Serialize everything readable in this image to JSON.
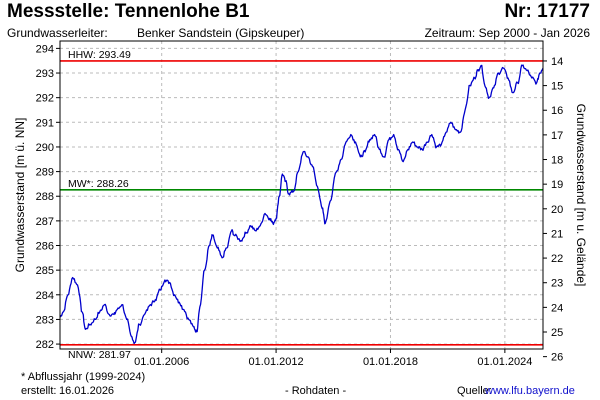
{
  "header": {
    "title": "Messstelle: Tennenlohe B1",
    "number": "Nr: 17177",
    "aquifer_label": "Grundwasserleiter:",
    "aquifer_value": "Benker Sandstein (Gipskeuper)",
    "period": "Zeitraum: Sep 2000 - Jan 2026"
  },
  "footer": {
    "footnote": "* Abflussjahr (1999-2024)",
    "created_label": "erstellt:",
    "created_value": "16.01.2026",
    "data_type": "- Rohdaten -",
    "source_label": "Quelle:",
    "source_value": "www.lfu.bayern.de"
  },
  "colors": {
    "series": "#0000cc",
    "hhw": "#ee0000",
    "mw": "#008800",
    "nnw": "#ee0000",
    "grid": "#bbbbbb"
  },
  "chart_data": {
    "type": "line",
    "title": "Messstelle: Tennenlohe B1",
    "ylabel": "Grundwasserstand [m ü. NN]",
    "y2label": "Grundwasserstand [m u. Gelände]",
    "ylim": [
      281.8,
      294.3
    ],
    "y_ticks": [
      282,
      283,
      284,
      285,
      286,
      287,
      288,
      289,
      290,
      291,
      292,
      293,
      294
    ],
    "y2_ticks": [
      14,
      15,
      16,
      17,
      18,
      19,
      20,
      21,
      22,
      23,
      24,
      25,
      26
    ],
    "y2_reference": 307.49,
    "xlim": [
      "2000-09",
      "2026-01"
    ],
    "x_ticks": [
      "01.01.2006",
      "01.01.2012",
      "01.01.2018",
      "01.01.2024"
    ],
    "grid": true,
    "reference_lines": [
      {
        "label": "HHW: 293.49",
        "value": 293.49
      },
      {
        "label": "MW*: 288.26",
        "value": 288.26
      },
      {
        "label": "NNW: 281.97",
        "value": 281.97
      }
    ],
    "series": [
      {
        "points": [
          [
            "2000-09",
            283.1
          ],
          [
            "2000-11",
            283.3
          ],
          [
            "2001-02",
            284.0
          ],
          [
            "2001-05",
            284.7
          ],
          [
            "2001-08",
            284.4
          ],
          [
            "2001-11",
            283.3
          ],
          [
            "2002-01",
            282.6
          ],
          [
            "2002-04",
            282.8
          ],
          [
            "2002-07",
            283.0
          ],
          [
            "2002-10",
            283.3
          ],
          [
            "2003-01",
            283.6
          ],
          [
            "2003-04",
            283.2
          ],
          [
            "2003-07",
            283.2
          ],
          [
            "2003-09",
            283.4
          ],
          [
            "2003-12",
            283.6
          ],
          [
            "2004-03",
            283.0
          ],
          [
            "2004-06",
            282.3
          ],
          [
            "2004-08",
            282.05
          ],
          [
            "2004-11",
            282.8
          ],
          [
            "2005-03",
            283.3
          ],
          [
            "2005-06",
            283.6
          ],
          [
            "2005-09",
            283.8
          ],
          [
            "2005-12",
            284.2
          ],
          [
            "2006-03",
            284.6
          ],
          [
            "2006-06",
            284.5
          ],
          [
            "2006-09",
            284.0
          ],
          [
            "2006-12",
            283.7
          ],
          [
            "2007-03",
            283.4
          ],
          [
            "2007-06",
            283.0
          ],
          [
            "2007-09",
            282.7
          ],
          [
            "2007-11",
            282.5
          ],
          [
            "2008-01",
            283.5
          ],
          [
            "2008-04",
            285.0
          ],
          [
            "2008-07",
            286.0
          ],
          [
            "2008-09",
            286.4
          ],
          [
            "2008-12",
            285.9
          ],
          [
            "2009-03",
            285.5
          ],
          [
            "2009-06",
            285.9
          ],
          [
            "2009-09",
            286.6
          ],
          [
            "2009-11",
            286.4
          ],
          [
            "2010-03",
            286.2
          ],
          [
            "2010-06",
            286.5
          ],
          [
            "2010-09",
            286.8
          ],
          [
            "2010-12",
            286.6
          ],
          [
            "2011-03",
            286.8
          ],
          [
            "2011-06",
            287.3
          ],
          [
            "2011-09",
            287.1
          ],
          [
            "2011-11",
            286.9
          ],
          [
            "2012-01",
            287.1
          ],
          [
            "2012-03",
            288.0
          ],
          [
            "2012-05",
            288.9
          ],
          [
            "2012-07",
            288.6
          ],
          [
            "2012-09",
            288.1
          ],
          [
            "2012-12",
            288.2
          ],
          [
            "2013-03",
            289.0
          ],
          [
            "2013-06",
            289.8
          ],
          [
            "2013-09",
            289.6
          ],
          [
            "2013-12",
            289.2
          ],
          [
            "2014-03",
            288.4
          ],
          [
            "2014-06",
            287.5
          ],
          [
            "2014-08",
            286.9
          ],
          [
            "2014-11",
            287.8
          ],
          [
            "2015-03",
            289.0
          ],
          [
            "2015-06",
            289.5
          ],
          [
            "2015-09",
            290.2
          ],
          [
            "2015-12",
            290.5
          ],
          [
            "2016-03",
            290.2
          ],
          [
            "2016-06",
            289.6
          ],
          [
            "2016-09",
            289.8
          ],
          [
            "2016-12",
            290.3
          ],
          [
            "2017-03",
            290.5
          ],
          [
            "2017-06",
            289.9
          ],
          [
            "2017-09",
            289.6
          ],
          [
            "2017-12",
            290.3
          ],
          [
            "2018-03",
            290.5
          ],
          [
            "2018-06",
            289.9
          ],
          [
            "2018-09",
            289.4
          ],
          [
            "2018-12",
            289.9
          ],
          [
            "2019-03",
            290.2
          ],
          [
            "2019-06",
            290.0
          ],
          [
            "2019-09",
            289.9
          ],
          [
            "2019-12",
            290.2
          ],
          [
            "2020-03",
            290.5
          ],
          [
            "2020-06",
            290.0
          ],
          [
            "2020-09",
            290.1
          ],
          [
            "2020-12",
            290.6
          ],
          [
            "2021-03",
            291.0
          ],
          [
            "2021-06",
            290.7
          ],
          [
            "2021-09",
            290.6
          ],
          [
            "2021-12",
            291.5
          ],
          [
            "2022-03",
            292.5
          ],
          [
            "2022-06",
            292.8
          ],
          [
            "2022-08",
            293.1
          ],
          [
            "2022-10",
            293.3
          ],
          [
            "2023-01",
            292.4
          ],
          [
            "2023-03",
            292.0
          ],
          [
            "2023-06",
            292.4
          ],
          [
            "2023-09",
            293.0
          ],
          [
            "2023-12",
            293.2
          ],
          [
            "2024-03",
            292.8
          ],
          [
            "2024-06",
            292.2
          ],
          [
            "2024-09",
            292.6
          ],
          [
            "2024-12",
            293.3
          ],
          [
            "2025-03",
            293.1
          ],
          [
            "2025-06",
            292.8
          ],
          [
            "2025-09",
            292.6
          ],
          [
            "2025-11",
            293.0
          ],
          [
            "2026-01",
            293.2
          ]
        ]
      }
    ]
  }
}
